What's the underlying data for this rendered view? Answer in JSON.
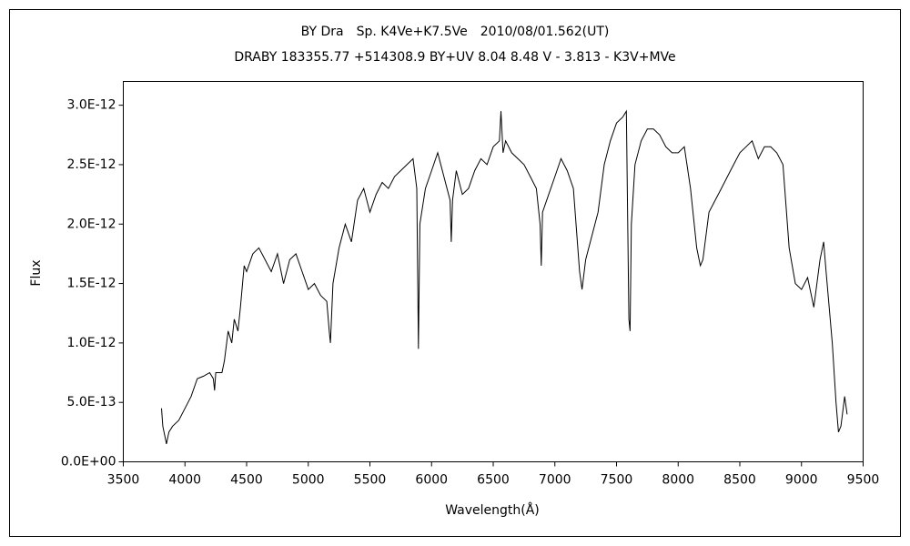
{
  "chart_data": {
    "type": "line",
    "title": "BY Dra　Sp. K4Ve+K7.5Ve　2010/08/01.562(UT)",
    "subtitle": "DRABY 183355.77 +514308.9 BY+UV 8.04 8.48 V - 3.813 - K3V+MVe",
    "x_label": "Wavelength(Å)",
    "y_label": "Flux",
    "color": "#000000",
    "xlim": [
      3500,
      9500
    ],
    "xticks": [
      3500,
      4000,
      4500,
      5000,
      5500,
      6000,
      6500,
      7000,
      7500,
      8000,
      8500,
      9000,
      9500
    ],
    "ylim": [
      0,
      3.2e-12
    ],
    "yticks": [
      {
        "value": 0,
        "label": "0.0E+00"
      },
      {
        "value": 5e-13,
        "label": "5.0E-13"
      },
      {
        "value": 1e-12,
        "label": "1.0E-12"
      },
      {
        "value": 1.5e-12,
        "label": "1.5E-12"
      },
      {
        "value": 2e-12,
        "label": "2.0E-12"
      },
      {
        "value": 2.5e-12,
        "label": "2.5E-12"
      },
      {
        "value": 3e-12,
        "label": "3.0E-12"
      }
    ],
    "x": [
      3810,
      3820,
      3840,
      3850,
      3870,
      3900,
      3950,
      4000,
      4050,
      4100,
      4150,
      4200,
      4230,
      4240,
      4250,
      4300,
      4320,
      4350,
      4380,
      4400,
      4430,
      4450,
      4480,
      4500,
      4550,
      4600,
      4650,
      4700,
      4750,
      4800,
      4850,
      4900,
      4950,
      5000,
      5050,
      5100,
      5150,
      5170,
      5180,
      5200,
      5250,
      5300,
      5350,
      5400,
      5450,
      5500,
      5550,
      5600,
      5650,
      5700,
      5750,
      5800,
      5850,
      5880,
      5893,
      5905,
      5950,
      6000,
      6050,
      6100,
      6150,
      6160,
      6170,
      6200,
      6250,
      6300,
      6350,
      6400,
      6450,
      6500,
      6550,
      6563,
      6580,
      6600,
      6650,
      6700,
      6750,
      6800,
      6850,
      6880,
      6890,
      6900,
      6950,
      7000,
      7050,
      7100,
      7150,
      7200,
      7220,
      7250,
      7300,
      7350,
      7400,
      7450,
      7500,
      7550,
      7580,
      7600,
      7610,
      7620,
      7650,
      7700,
      7750,
      7800,
      7850,
      7900,
      7950,
      8000,
      8050,
      8100,
      8150,
      8180,
      8200,
      8250,
      8300,
      8350,
      8400,
      8450,
      8500,
      8550,
      8600,
      8650,
      8700,
      8750,
      8800,
      8850,
      8900,
      8950,
      9000,
      9050,
      9100,
      9150,
      9180,
      9200,
      9250,
      9280,
      9300,
      9320,
      9350,
      9370
    ],
    "values": [
      4.5e-13,
      3e-13,
      2e-13,
      1.5e-13,
      2.5e-13,
      3e-13,
      3.5e-13,
      4.5e-13,
      5.5e-13,
      7e-13,
      7.2e-13,
      7.5e-13,
      7e-13,
      6e-13,
      7.5e-13,
      7.5e-13,
      8.5e-13,
      1.1e-12,
      1e-12,
      1.2e-12,
      1.1e-12,
      1.3e-12,
      1.65e-12,
      1.6e-12,
      1.75e-12,
      1.8e-12,
      1.7e-12,
      1.6e-12,
      1.75e-12,
      1.5e-12,
      1.7e-12,
      1.75e-12,
      1.6e-12,
      1.45e-12,
      1.5e-12,
      1.4e-12,
      1.35e-12,
      1.1e-12,
      1e-12,
      1.5e-12,
      1.8e-12,
      2e-12,
      1.85e-12,
      2.2e-12,
      2.3e-12,
      2.1e-12,
      2.25e-12,
      2.35e-12,
      2.3e-12,
      2.4e-12,
      2.45e-12,
      2.5e-12,
      2.55e-12,
      2.3e-12,
      9.5e-13,
      2e-12,
      2.3e-12,
      2.45e-12,
      2.6e-12,
      2.4e-12,
      2.2e-12,
      1.85e-12,
      2.2e-12,
      2.45e-12,
      2.25e-12,
      2.3e-12,
      2.45e-12,
      2.55e-12,
      2.5e-12,
      2.65e-12,
      2.7e-12,
      2.95e-12,
      2.6e-12,
      2.7e-12,
      2.6e-12,
      2.55e-12,
      2.5e-12,
      2.4e-12,
      2.3e-12,
      2e-12,
      1.65e-12,
      2.1e-12,
      2.25e-12,
      2.4e-12,
      2.55e-12,
      2.45e-12,
      2.3e-12,
      1.6e-12,
      1.45e-12,
      1.7e-12,
      1.9e-12,
      2.1e-12,
      2.5e-12,
      2.7e-12,
      2.85e-12,
      2.9e-12,
      2.95e-12,
      1.2e-12,
      1.1e-12,
      2e-12,
      2.5e-12,
      2.7e-12,
      2.8e-12,
      2.8e-12,
      2.75e-12,
      2.65e-12,
      2.6e-12,
      2.6e-12,
      2.65e-12,
      2.3e-12,
      1.8e-12,
      1.65e-12,
      1.7e-12,
      2.1e-12,
      2.2e-12,
      2.3e-12,
      2.4e-12,
      2.5e-12,
      2.6e-12,
      2.65e-12,
      2.7e-12,
      2.55e-12,
      2.65e-12,
      2.65e-12,
      2.6e-12,
      2.5e-12,
      1.8e-12,
      1.5e-12,
      1.45e-12,
      1.55e-12,
      1.3e-12,
      1.7e-12,
      1.85e-12,
      1.6e-12,
      1e-12,
      5e-13,
      2.5e-13,
      3e-13,
      5.5e-13,
      4e-13
    ]
  }
}
